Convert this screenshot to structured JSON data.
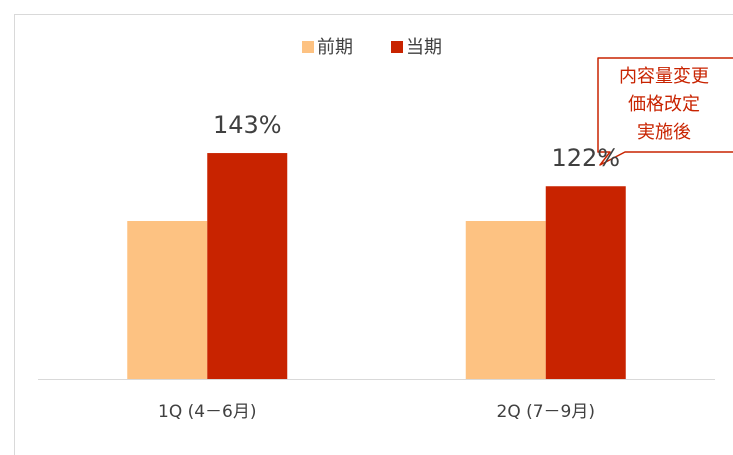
{
  "chart_data": {
    "type": "bar",
    "categories": [
      "1Q (4－6月)",
      "2Q (7－9月)"
    ],
    "series": [
      {
        "name": "前期",
        "color": "#fdc282",
        "values": [
          100,
          100
        ]
      },
      {
        "name": "当期",
        "color": "#c82300",
        "values": [
          143,
          122
        ],
        "value_labels": [
          "143%",
          "122%"
        ]
      }
    ],
    "ylim": [
      0,
      150
    ],
    "legend": "top",
    "annotation": [
      "内容量変更",
      "価格改定",
      "実施後"
    ]
  }
}
